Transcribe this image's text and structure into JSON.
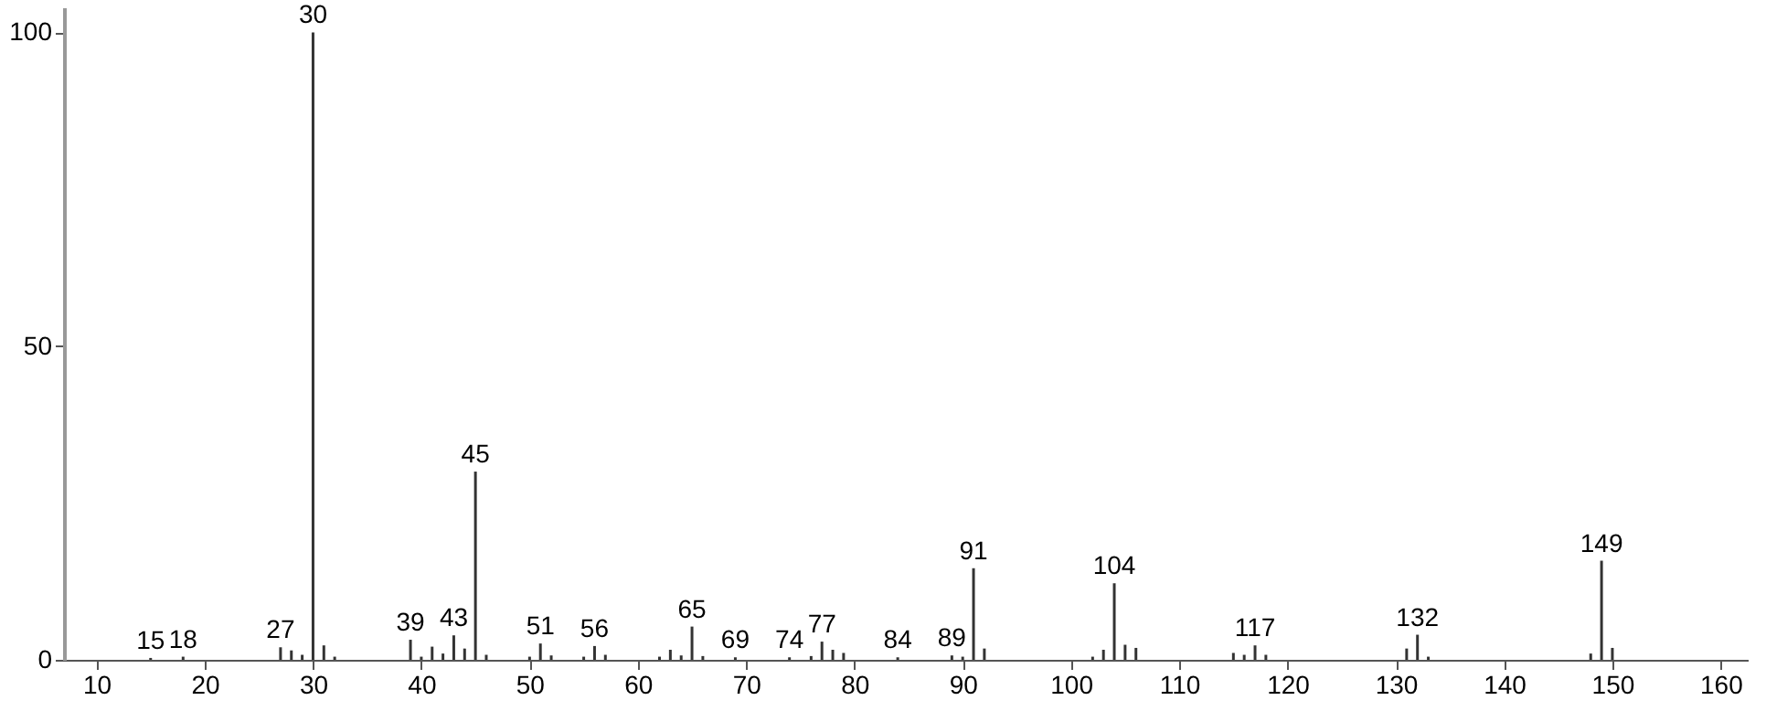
{
  "chart_data": {
    "type": "bar",
    "color": "#333333",
    "x": [
      15,
      18,
      27,
      28,
      29,
      30,
      31,
      32,
      39,
      40,
      41,
      42,
      43,
      44,
      45,
      46,
      50,
      51,
      52,
      55,
      56,
      57,
      62,
      63,
      64,
      65,
      66,
      69,
      74,
      76,
      77,
      78,
      79,
      84,
      89,
      90,
      91,
      92,
      102,
      103,
      104,
      105,
      106,
      115,
      116,
      117,
      118,
      131,
      132,
      133,
      148,
      149,
      150
    ],
    "values": [
      0.3,
      0.5,
      2,
      1.5,
      0.8,
      100,
      2.3,
      0.5,
      3.2,
      0.5,
      2.1,
      1,
      3.9,
      1.8,
      30,
      0.8,
      0.5,
      2.6,
      0.7,
      0.5,
      2.2,
      0.8,
      0.5,
      1.6,
      0.7,
      5.3,
      0.6,
      0.4,
      0.4,
      0.6,
      2.9,
      1.6,
      1.1,
      0.4,
      0.7,
      0.5,
      14.6,
      1.8,
      0.5,
      1.6,
      12.2,
      2.4,
      1.9,
      1.1,
      0.8,
      2.3,
      0.8,
      1.8,
      4,
      0.5,
      1,
      15.8,
      1.9
    ],
    "annotations": [
      {
        "text": "15",
        "x": 15,
        "y": 0.3
      },
      {
        "text": "18",
        "x": 18,
        "y": 0.5
      },
      {
        "text": "27",
        "x": 27,
        "y": 2
      },
      {
        "text": "30",
        "x": 30,
        "y": 100
      },
      {
        "text": "39",
        "x": 39,
        "y": 3.2
      },
      {
        "text": "43",
        "x": 43,
        "y": 3.9
      },
      {
        "text": "45",
        "x": 45,
        "y": 30
      },
      {
        "text": "51",
        "x": 51,
        "y": 2.6
      },
      {
        "text": "56",
        "x": 56,
        "y": 2.2
      },
      {
        "text": "65",
        "x": 65,
        "y": 5.3
      },
      {
        "text": "69",
        "x": 69,
        "y": 0.4
      },
      {
        "text": "74",
        "x": 74,
        "y": 0.4
      },
      {
        "text": "77",
        "x": 77,
        "y": 2.9
      },
      {
        "text": "84",
        "x": 84,
        "y": 0.4
      },
      {
        "text": "89",
        "x": 89,
        "y": 0.7
      },
      {
        "text": "91",
        "x": 91,
        "y": 14.6
      },
      {
        "text": "104",
        "x": 104,
        "y": 12.2
      },
      {
        "text": "117",
        "x": 117,
        "y": 2.3
      },
      {
        "text": "132",
        "x": 132,
        "y": 4
      },
      {
        "text": "149",
        "x": 149,
        "y": 15.8
      }
    ],
    "xlim": [
      7,
      162.5
    ],
    "xticks": [
      10,
      20,
      30,
      40,
      50,
      60,
      70,
      80,
      90,
      100,
      110,
      120,
      130,
      140,
      150,
      160
    ],
    "ylim": [
      0,
      104
    ],
    "yticks": [
      0,
      50,
      100
    ],
    "grid": false
  }
}
